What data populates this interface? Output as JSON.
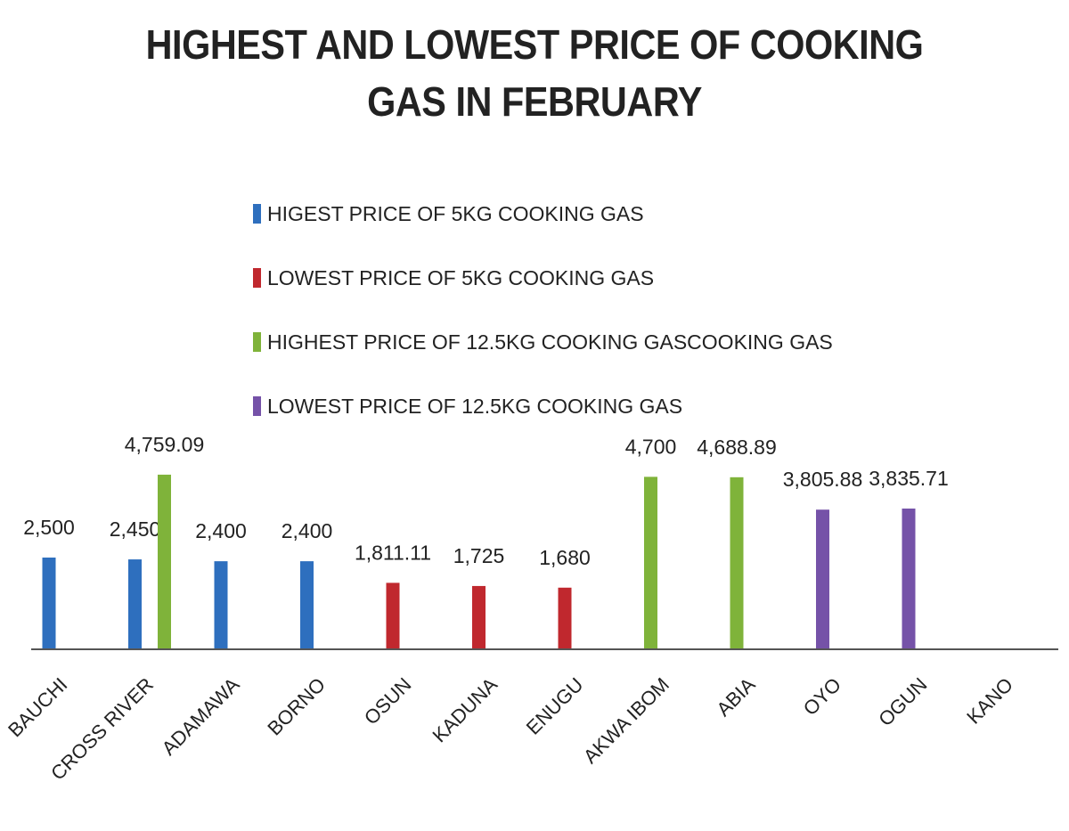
{
  "chart_data": {
    "type": "bar",
    "title_line1": "HIGHEST AND LOWEST PRICE OF COOKING",
    "title_line2": "GAS IN FEBRUARY",
    "xlabel": "",
    "ylabel": "",
    "ylim": [
      0,
      8000
    ],
    "grid": false,
    "legend_position": "top-center, stacked vertically",
    "categories": [
      "BAUCHI",
      "CROSS RIVER",
      "ADAMAWA",
      "BORNO",
      "OSUN",
      "KADUNA",
      "ENUGU",
      "AKWA IBOM",
      "ABIA",
      "OYO",
      "OGUN",
      "KANO"
    ],
    "series": [
      {
        "name": "HIGEST PRICE OF 5KG COOKING GAS",
        "color": "#2e6fbe",
        "values": [
          2500,
          2450,
          2400,
          2400,
          null,
          null,
          null,
          null,
          null,
          null,
          null,
          null
        ],
        "labels": [
          "2,500",
          "2,450",
          "2,400",
          "2,400",
          null,
          null,
          null,
          null,
          null,
          null,
          null,
          null
        ]
      },
      {
        "name": "LOWEST PRICE OF 5KG COOKING GAS",
        "color": "#c0282e",
        "values": [
          null,
          null,
          null,
          null,
          1811.11,
          1725,
          1680,
          null,
          null,
          null,
          null,
          null
        ],
        "labels": [
          null,
          null,
          null,
          null,
          "1,811.11",
          "1,725",
          "1,680",
          null,
          null,
          null,
          null,
          null
        ]
      },
      {
        "name": "HIGHEST PRICE OF 12.5KG COOKING GASCOOKING GAS",
        "color": "#7fb33a",
        "values": [
          null,
          4759.09,
          null,
          null,
          null,
          null,
          null,
          4700,
          4688.89,
          null,
          null,
          null
        ],
        "labels": [
          null,
          "4,759.09",
          null,
          null,
          null,
          null,
          null,
          "4,700",
          "4,688.89",
          null,
          null,
          null
        ]
      },
      {
        "name": "LOWEST PRICE OF 12.5KG COOKING GAS",
        "color": "#7552a8",
        "values": [
          null,
          null,
          null,
          null,
          null,
          null,
          null,
          null,
          null,
          3805.88,
          3835.71,
          null
        ],
        "labels": [
          null,
          null,
          null,
          null,
          null,
          null,
          null,
          null,
          null,
          "3,805.88",
          "3,835.71",
          null
        ]
      }
    ]
  }
}
